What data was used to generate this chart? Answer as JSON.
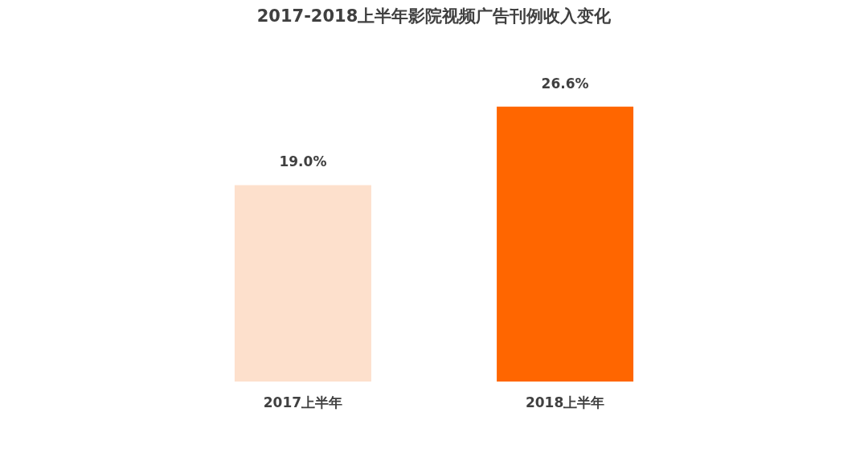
{
  "chart_data": {
    "type": "bar",
    "title": "2017-2018上半年影院视频广告刊例收入变化",
    "categories": [
      "2017上半年",
      "2018上半年"
    ],
    "values": [
      19.0,
      26.6
    ],
    "value_labels": [
      "19.0%",
      "26.6%"
    ],
    "colors": [
      "#fde0cc",
      "#ff6600"
    ],
    "grid": false,
    "tick_labels": "x"
  }
}
